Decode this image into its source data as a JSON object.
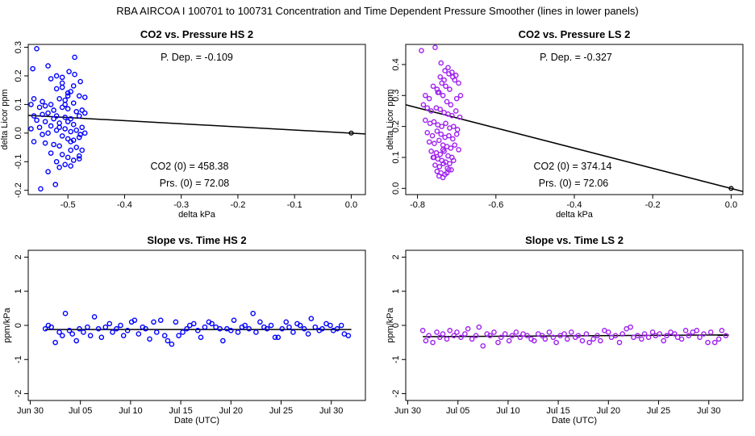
{
  "title": "RBA   AIRCOA I   100701 to 100731   Concentration and Time Dependent Pressure Smoother (lines in lower panels)",
  "colors": {
    "hs": "#0000ff",
    "ls": "#a020f0",
    "axis": "#000000"
  },
  "chart_data": [
    {
      "id": "hs-pressure",
      "type": "scatter",
      "title": "CO2 vs. Pressure HS 2",
      "xlabel": "delta kPa",
      "ylabel": "delta Licor ppm",
      "xlim": [
        -0.57,
        0.025
      ],
      "ylim": [
        -0.215,
        0.31
      ],
      "xticks": [
        -0.5,
        -0.4,
        -0.3,
        -0.2,
        -0.1,
        0.0
      ],
      "xtick_labels": [
        "-0.5",
        "-0.4",
        "-0.3",
        "-0.2",
        "-0.1",
        "0.0"
      ],
      "yticks": [
        -0.2,
        -0.1,
        0.0,
        0.1,
        0.2,
        0.3
      ],
      "ytick_labels": [
        "-0.2",
        "-0.1",
        "0.0",
        "0.1",
        "0.2",
        "0.3"
      ],
      "annotations": [
        "P. Dep. =  -0.109",
        "CO2 (0) =  458.38",
        "Prs. (0) =  72.08"
      ],
      "fit_line": {
        "x": [
          -0.57,
          0.025
        ],
        "y": [
          0.062,
          -0.003
        ]
      },
      "anchor_point": [
        0.0,
        0.0
      ],
      "series": [
        {
          "x": [
            -0.555,
            -0.548,
            -0.562,
            -0.535,
            -0.52,
            -0.51,
            -0.488,
            -0.478,
            -0.5,
            -0.495,
            -0.56,
            -0.545,
            -0.53,
            -0.515,
            -0.505,
            -0.49,
            -0.48,
            -0.47,
            -0.565,
            -0.55,
            -0.54,
            -0.525,
            -0.51,
            -0.5,
            -0.485,
            -0.475,
            -0.56,
            -0.545,
            -0.535,
            -0.52,
            -0.505,
            -0.495,
            -0.48,
            -0.47,
            -0.555,
            -0.54,
            -0.525,
            -0.515,
            -0.5,
            -0.49,
            -0.475,
            -0.565,
            -0.55,
            -0.53,
            -0.52,
            -0.505,
            -0.495,
            -0.485,
            -0.47,
            -0.545,
            -0.535,
            -0.51,
            -0.5,
            -0.49,
            -0.48,
            -0.56,
            -0.54,
            -0.525,
            -0.515,
            -0.495,
            -0.485,
            -0.475,
            -0.53,
            -0.51,
            -0.5,
            -0.48,
            -0.52,
            -0.505,
            -0.49,
            -0.535,
            -0.515,
            -0.495,
            -0.48,
            -0.53,
            -0.51,
            -0.49,
            -0.52,
            -0.5,
            -0.515,
            -0.495,
            -0.505,
            -0.51,
            -0.498,
            -0.488,
            -0.478,
            -0.522
          ],
          "y": [
            0.295,
            -0.195,
            0.225,
            0.235,
            0.2,
            0.195,
            0.265,
            0.18,
            0.13,
            0.145,
            0.12,
            0.11,
            0.1,
            0.12,
            0.115,
            0.105,
            0.13,
            0.125,
            0.1,
            0.09,
            0.095,
            0.08,
            0.09,
            0.085,
            0.075,
            0.08,
            0.06,
            0.065,
            0.07,
            0.06,
            0.055,
            0.05,
            0.06,
            0.07,
            0.045,
            0.04,
            0.05,
            0.035,
            0.04,
            0.03,
            0.02,
            0.015,
            0.02,
            0.025,
            0.01,
            0.015,
            0.005,
            0.01,
            0.0,
            -0.005,
            0.0,
            -0.01,
            -0.02,
            -0.025,
            -0.015,
            -0.03,
            -0.035,
            -0.04,
            -0.045,
            -0.03,
            -0.05,
            -0.06,
            -0.07,
            -0.075,
            -0.085,
            -0.08,
            -0.1,
            -0.11,
            -0.095,
            -0.135,
            -0.12,
            -0.115,
            -0.09,
            0.19,
            0.175,
            0.165,
            0.155,
            0.14,
            0.02,
            -0.06,
            0.1,
            0.16,
            0.215,
            0.205,
            -0.005,
            -0.18
          ]
        }
      ]
    },
    {
      "id": "ls-pressure",
      "type": "scatter",
      "title": "CO2 vs. Pressure LS 2",
      "xlabel": "delta kPa",
      "ylabel": "delta Licor ppm",
      "xlim": [
        -0.83,
        0.03
      ],
      "ylim": [
        -0.02,
        0.465
      ],
      "xticks": [
        -0.8,
        -0.6,
        -0.4,
        -0.2,
        0.0
      ],
      "xtick_labels": [
        "-0.8",
        "-0.6",
        "-0.4",
        "-0.2",
        "0.0"
      ],
      "yticks": [
        0.0,
        0.1,
        0.2,
        0.3,
        0.4
      ],
      "ytick_labels": [
        "0.0",
        "0.1",
        "0.2",
        "0.3",
        "0.4"
      ],
      "annotations": [
        "P. Dep. =  -0.327",
        "CO2 (0) =  374.14",
        "Prs. (0) =  72.06"
      ],
      "fit_line": {
        "x": [
          -0.83,
          0.03
        ],
        "y": [
          0.27,
          -0.01
        ]
      },
      "anchor_point": [
        0.0,
        0.0
      ],
      "series": [
        {
          "x": [
            -0.79,
            -0.755,
            -0.74,
            -0.73,
            -0.72,
            -0.71,
            -0.705,
            -0.695,
            -0.78,
            -0.77,
            -0.76,
            -0.75,
            -0.745,
            -0.735,
            -0.725,
            -0.715,
            -0.7,
            -0.69,
            -0.785,
            -0.775,
            -0.765,
            -0.752,
            -0.742,
            -0.732,
            -0.722,
            -0.712,
            -0.702,
            -0.692,
            -0.78,
            -0.768,
            -0.758,
            -0.748,
            -0.738,
            -0.728,
            -0.718,
            -0.708,
            -0.698,
            -0.775,
            -0.762,
            -0.75,
            -0.74,
            -0.73,
            -0.72,
            -0.71,
            -0.7,
            -0.77,
            -0.757,
            -0.745,
            -0.735,
            -0.725,
            -0.715,
            -0.705,
            -0.695,
            -0.765,
            -0.752,
            -0.742,
            -0.732,
            -0.722,
            -0.712,
            -0.76,
            -0.748,
            -0.738,
            -0.728,
            -0.718,
            -0.708,
            -0.755,
            -0.744,
            -0.734,
            -0.724,
            -0.714,
            -0.75,
            -0.74,
            -0.73,
            -0.72,
            -0.745,
            -0.735,
            -0.725,
            -0.742,
            -0.732,
            -0.738,
            -0.728,
            -0.718,
            -0.748,
            -0.758,
            -0.722,
            -0.712,
            -0.702,
            -0.735
          ],
          "y": [
            0.445,
            0.455,
            0.405,
            0.38,
            0.37,
            0.36,
            0.35,
            0.34,
            0.3,
            0.29,
            0.33,
            0.32,
            0.31,
            0.3,
            0.28,
            0.27,
            0.29,
            0.3,
            0.27,
            0.26,
            0.25,
            0.26,
            0.255,
            0.245,
            0.24,
            0.235,
            0.25,
            0.23,
            0.22,
            0.21,
            0.215,
            0.205,
            0.2,
            0.21,
            0.195,
            0.2,
            0.19,
            0.18,
            0.17,
            0.185,
            0.175,
            0.165,
            0.17,
            0.16,
            0.175,
            0.15,
            0.145,
            0.155,
            0.14,
            0.135,
            0.13,
            0.14,
            0.125,
            0.12,
            0.115,
            0.11,
            0.12,
            0.105,
            0.1,
            0.1,
            0.095,
            0.09,
            0.085,
            0.08,
            0.09,
            0.075,
            0.07,
            0.08,
            0.065,
            0.06,
            0.055,
            0.05,
            0.045,
            0.06,
            0.04,
            0.035,
            0.05,
            0.36,
            0.35,
            0.34,
            0.33,
            0.32,
            0.31,
            0.1,
            0.39,
            0.375,
            0.365,
            0.125
          ]
        }
      ]
    },
    {
      "id": "hs-slope",
      "type": "scatter",
      "title": "Slope vs. Time HS 2",
      "xlabel": "Date (UTC)",
      "ylabel": "ppm/kPa",
      "xlim": [
        -0.2,
        33.4
      ],
      "ylim": [
        -2.2,
        2.2
      ],
      "xticks": [
        0,
        5,
        10,
        15,
        20,
        25,
        30
      ],
      "xtick_labels": [
        "Jun 30",
        "Jul 05",
        "Jul 10",
        "Jul 15",
        "Jul 20",
        "Jul 25",
        "Jul 30"
      ],
      "yticks": [
        -2,
        -1,
        0,
        1,
        2
      ],
      "ytick_labels": [
        "-2",
        "-1",
        "0",
        "1",
        "2"
      ],
      "smoother": {
        "x": [
          1.5,
          32.0
        ],
        "y": [
          -0.12,
          -0.12
        ]
      },
      "series": [
        {
          "x": [
            1.5,
            1.8,
            2.1,
            2.5,
            2.9,
            3.2,
            3.5,
            3.9,
            4.2,
            4.6,
            4.9,
            5.3,
            5.7,
            6.0,
            6.4,
            6.8,
            7.1,
            7.5,
            7.9,
            8.2,
            8.6,
            9.0,
            9.3,
            9.7,
            10.1,
            10.4,
            10.8,
            11.2,
            11.5,
            11.9,
            12.3,
            12.6,
            13.0,
            13.4,
            13.7,
            14.1,
            14.5,
            14.8,
            15.2,
            15.6,
            15.9,
            16.3,
            16.7,
            17.0,
            17.4,
            17.8,
            18.1,
            18.5,
            18.9,
            19.2,
            19.6,
            20.0,
            20.3,
            20.7,
            21.1,
            21.4,
            21.8,
            22.2,
            22.5,
            22.9,
            23.3,
            23.6,
            24.0,
            24.4,
            24.7,
            25.1,
            25.5,
            25.8,
            26.2,
            26.6,
            26.9,
            27.3,
            27.7,
            28.0,
            28.4,
            28.8,
            29.1,
            29.5,
            29.9,
            30.2,
            30.6,
            31.0,
            31.3,
            31.7
          ],
          "y": [
            -0.1,
            0.0,
            -0.05,
            -0.5,
            -0.2,
            -0.3,
            0.35,
            -0.15,
            -0.25,
            -0.45,
            -0.1,
            -0.2,
            -0.05,
            -0.3,
            0.25,
            -0.1,
            -0.35,
            -0.05,
            0.05,
            -0.2,
            -0.1,
            0.0,
            -0.3,
            -0.15,
            0.1,
            0.15,
            -0.25,
            -0.05,
            -0.1,
            -0.4,
            0.1,
            -0.2,
            0.15,
            -0.3,
            -0.45,
            -0.55,
            0.1,
            -0.3,
            -0.2,
            -0.1,
            0.0,
            0.05,
            -0.15,
            -0.35,
            -0.05,
            0.1,
            0.05,
            -0.05,
            -0.1,
            -0.45,
            -0.1,
            -0.15,
            0.15,
            -0.2,
            -0.05,
            0.0,
            -0.1,
            0.35,
            -0.2,
            0.1,
            -0.05,
            -0.1,
            0.0,
            -0.35,
            -0.35,
            -0.1,
            0.1,
            -0.05,
            -0.2,
            0.05,
            0.0,
            -0.1,
            -0.25,
            0.2,
            -0.05,
            -0.15,
            -0.1,
            0.05,
            0.0,
            -0.15,
            -0.1,
            0.0,
            -0.25,
            -0.3
          ]
        }
      ]
    },
    {
      "id": "ls-slope",
      "type": "scatter",
      "title": "Slope vs. Time LS 2",
      "xlabel": "Date (UTC)",
      "ylabel": "ppm/kPa",
      "xlim": [
        -0.2,
        33.4
      ],
      "ylim": [
        -2.2,
        2.2
      ],
      "xticks": [
        0,
        5,
        10,
        15,
        20,
        25,
        30
      ],
      "xtick_labels": [
        "Jun 30",
        "Jul 05",
        "Jul 10",
        "Jul 15",
        "Jul 20",
        "Jul 25",
        "Jul 30"
      ],
      "yticks": [
        -2,
        -1,
        0,
        1,
        2
      ],
      "ytick_labels": [
        "-2",
        "-1",
        "0",
        "1",
        "2"
      ],
      "smoother": {
        "x": [
          1.5,
          32.0
        ],
        "y": [
          -0.33,
          -0.28
        ]
      },
      "series": [
        {
          "x": [
            1.5,
            1.8,
            2.1,
            2.5,
            2.9,
            3.2,
            3.5,
            3.9,
            4.2,
            4.6,
            4.9,
            5.3,
            5.7,
            6.0,
            6.4,
            6.8,
            7.1,
            7.5,
            7.9,
            8.2,
            8.6,
            9.0,
            9.3,
            9.7,
            10.1,
            10.4,
            10.8,
            11.2,
            11.5,
            11.9,
            12.3,
            12.6,
            13.0,
            13.4,
            13.7,
            14.1,
            14.5,
            14.8,
            15.2,
            15.6,
            15.9,
            16.3,
            16.7,
            17.0,
            17.4,
            17.8,
            18.1,
            18.5,
            18.9,
            19.2,
            19.6,
            20.0,
            20.3,
            20.7,
            21.1,
            21.4,
            21.8,
            22.2,
            22.5,
            22.9,
            23.3,
            23.6,
            24.0,
            24.4,
            24.7,
            25.1,
            25.5,
            25.8,
            26.2,
            26.6,
            26.9,
            27.3,
            27.7,
            28.0,
            28.4,
            28.8,
            29.1,
            29.5,
            29.9,
            30.2,
            30.6,
            31.0,
            31.3,
            31.7
          ],
          "y": [
            -0.15,
            -0.45,
            -0.3,
            -0.5,
            -0.2,
            -0.35,
            -0.25,
            -0.4,
            -0.15,
            -0.3,
            -0.2,
            -0.35,
            -0.25,
            -0.1,
            -0.4,
            -0.3,
            -0.05,
            -0.6,
            -0.25,
            -0.3,
            -0.2,
            -0.5,
            -0.35,
            -0.25,
            -0.45,
            -0.3,
            -0.2,
            -0.35,
            -0.25,
            -0.3,
            -0.4,
            -0.45,
            -0.25,
            -0.3,
            -0.4,
            -0.2,
            -0.35,
            -0.5,
            -0.3,
            -0.25,
            -0.4,
            -0.2,
            -0.35,
            -0.3,
            -0.45,
            -0.25,
            -0.5,
            -0.4,
            -0.3,
            -0.45,
            -0.15,
            -0.2,
            -0.35,
            -0.3,
            -0.5,
            -0.25,
            -0.1,
            -0.05,
            -0.35,
            -0.3,
            -0.4,
            -0.25,
            -0.35,
            -0.2,
            -0.3,
            -0.25,
            -0.45,
            -0.3,
            -0.2,
            -0.25,
            -0.35,
            -0.4,
            -0.15,
            -0.3,
            -0.2,
            -0.15,
            -0.35,
            -0.25,
            -0.5,
            -0.2,
            -0.5,
            -0.4,
            -0.15,
            -0.3
          ]
        }
      ]
    }
  ]
}
